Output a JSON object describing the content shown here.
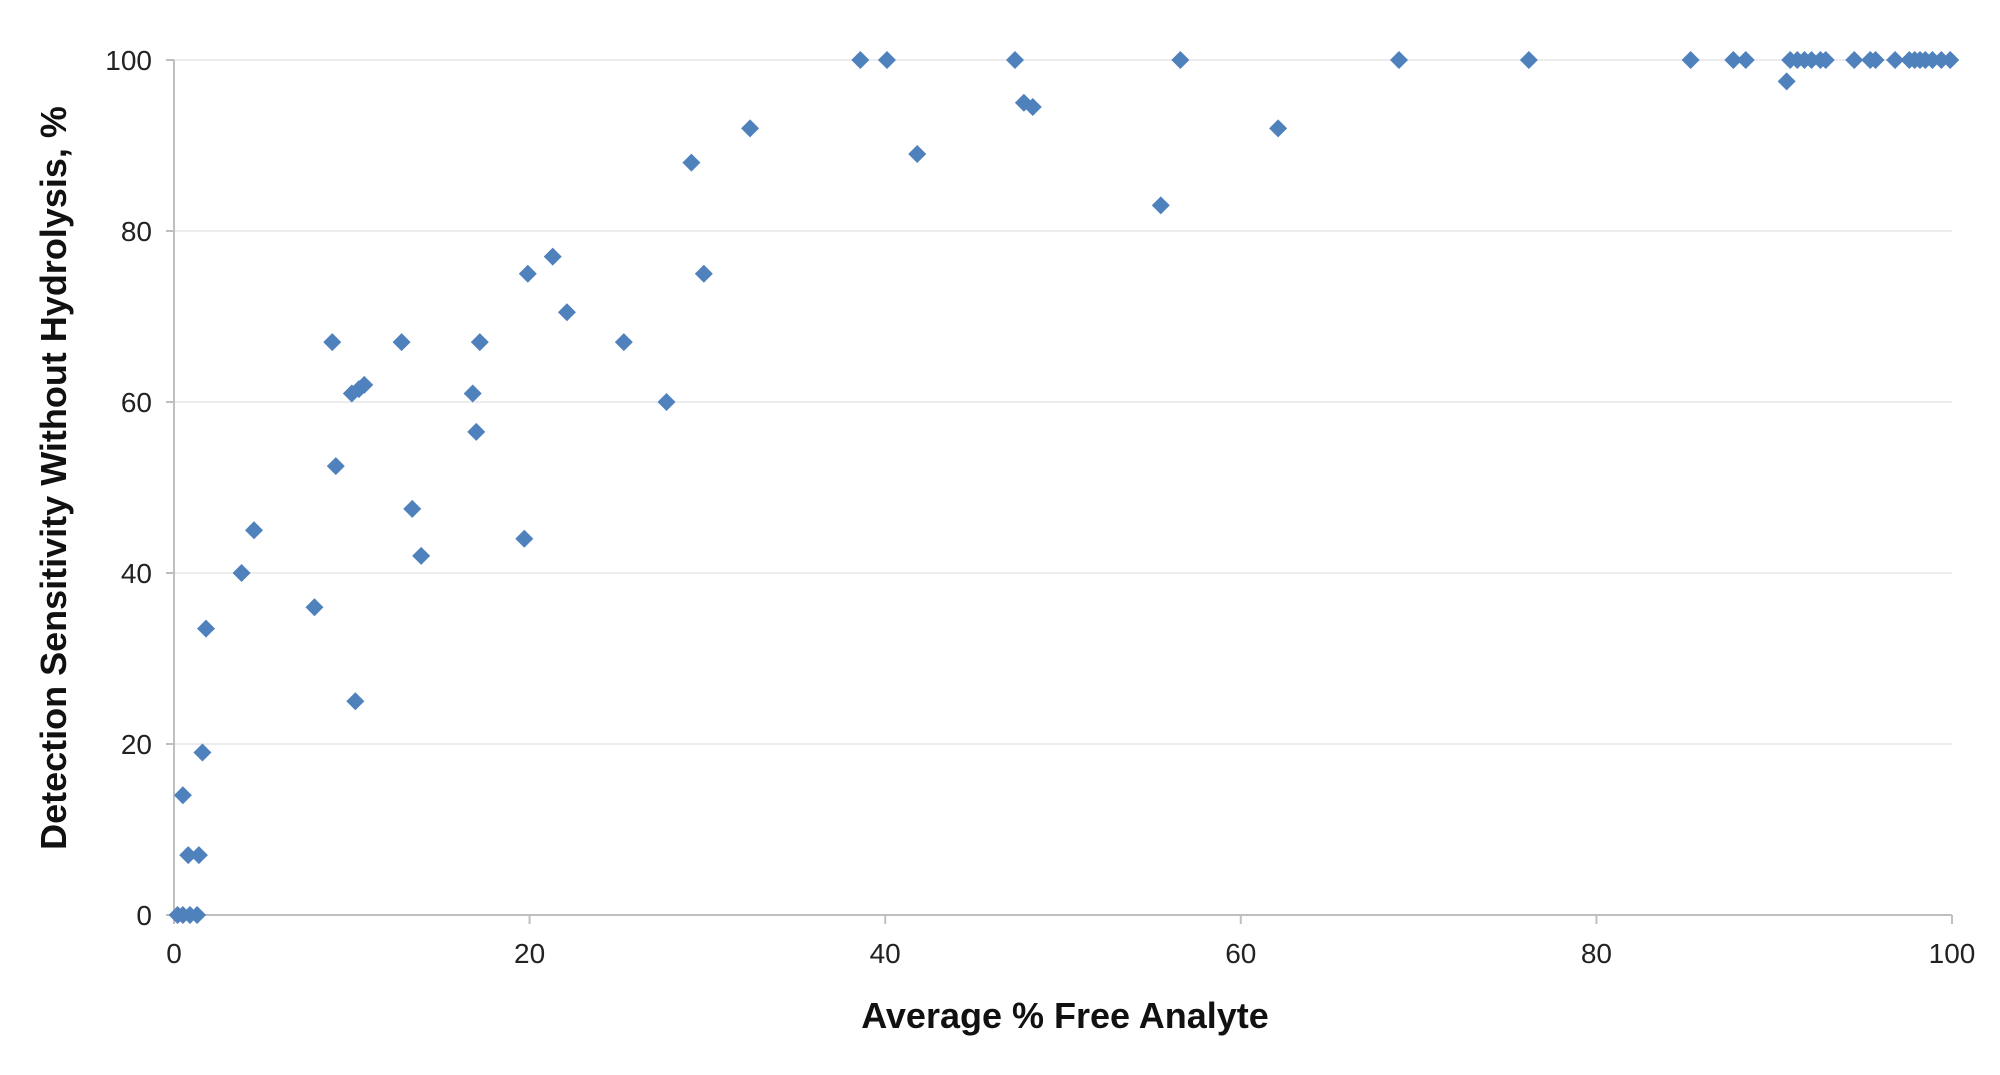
{
  "chart_data": {
    "type": "scatter",
    "title": "",
    "xlabel": "Average % Free Analyte",
    "ylabel": "Detection Sensitivity Without Hydrolysis, %",
    "xlim": [
      0,
      100
    ],
    "ylim": [
      0,
      100
    ],
    "x_ticks": [
      0,
      20,
      40,
      60,
      80,
      100
    ],
    "y_ticks": [
      0,
      20,
      40,
      60,
      80,
      100
    ],
    "grid": "horizontal",
    "legend": "none",
    "marker": "diamond",
    "colors": {
      "marker": "#4F81BD",
      "grid": "#E6E6E6",
      "axis": "#BFBFBF"
    },
    "series": [
      {
        "points": [
          [
            0.2,
            0
          ],
          [
            0.5,
            0
          ],
          [
            0.9,
            0
          ],
          [
            1.3,
            0
          ],
          [
            0.5,
            14
          ],
          [
            0.8,
            7
          ],
          [
            1.4,
            7
          ],
          [
            1.6,
            19
          ],
          [
            1.8,
            33.5
          ],
          [
            3.8,
            40
          ],
          [
            4.5,
            45
          ],
          [
            7.9,
            36
          ],
          [
            8.9,
            67
          ],
          [
            9.1,
            52.5
          ],
          [
            10.0,
            61
          ],
          [
            10.2,
            25
          ],
          [
            10.4,
            61.5
          ],
          [
            10.7,
            62
          ],
          [
            12.8,
            67
          ],
          [
            13.4,
            47.5
          ],
          [
            13.9,
            42
          ],
          [
            16.8,
            61
          ],
          [
            17.0,
            56.5
          ],
          [
            17.2,
            67
          ],
          [
            19.7,
            44
          ],
          [
            19.9,
            75
          ],
          [
            21.3,
            77
          ],
          [
            22.1,
            70.5
          ],
          [
            25.3,
            67
          ],
          [
            27.7,
            60
          ],
          [
            29.1,
            88
          ],
          [
            29.8,
            75
          ],
          [
            32.4,
            92
          ],
          [
            38.6,
            100
          ],
          [
            40.1,
            100
          ],
          [
            41.8,
            89
          ],
          [
            47.3,
            100
          ],
          [
            47.8,
            95
          ],
          [
            48.3,
            94.5
          ],
          [
            55.5,
            83
          ],
          [
            56.6,
            100
          ],
          [
            62.1,
            92
          ],
          [
            68.9,
            100
          ],
          [
            76.2,
            100
          ],
          [
            85.3,
            100
          ],
          [
            87.7,
            100
          ],
          [
            88.4,
            100
          ],
          [
            90.7,
            97.5
          ],
          [
            90.9,
            100
          ],
          [
            91.3,
            100
          ],
          [
            91.7,
            100
          ],
          [
            92.1,
            100
          ],
          [
            92.6,
            100
          ],
          [
            92.9,
            100
          ],
          [
            94.5,
            100
          ],
          [
            95.4,
            100
          ],
          [
            95.7,
            100
          ],
          [
            96.8,
            100
          ],
          [
            97.6,
            100
          ],
          [
            97.9,
            100
          ],
          [
            98.2,
            100
          ],
          [
            98.5,
            100
          ],
          [
            98.9,
            100
          ],
          [
            99.4,
            100
          ],
          [
            99.9,
            100
          ]
        ]
      }
    ]
  }
}
